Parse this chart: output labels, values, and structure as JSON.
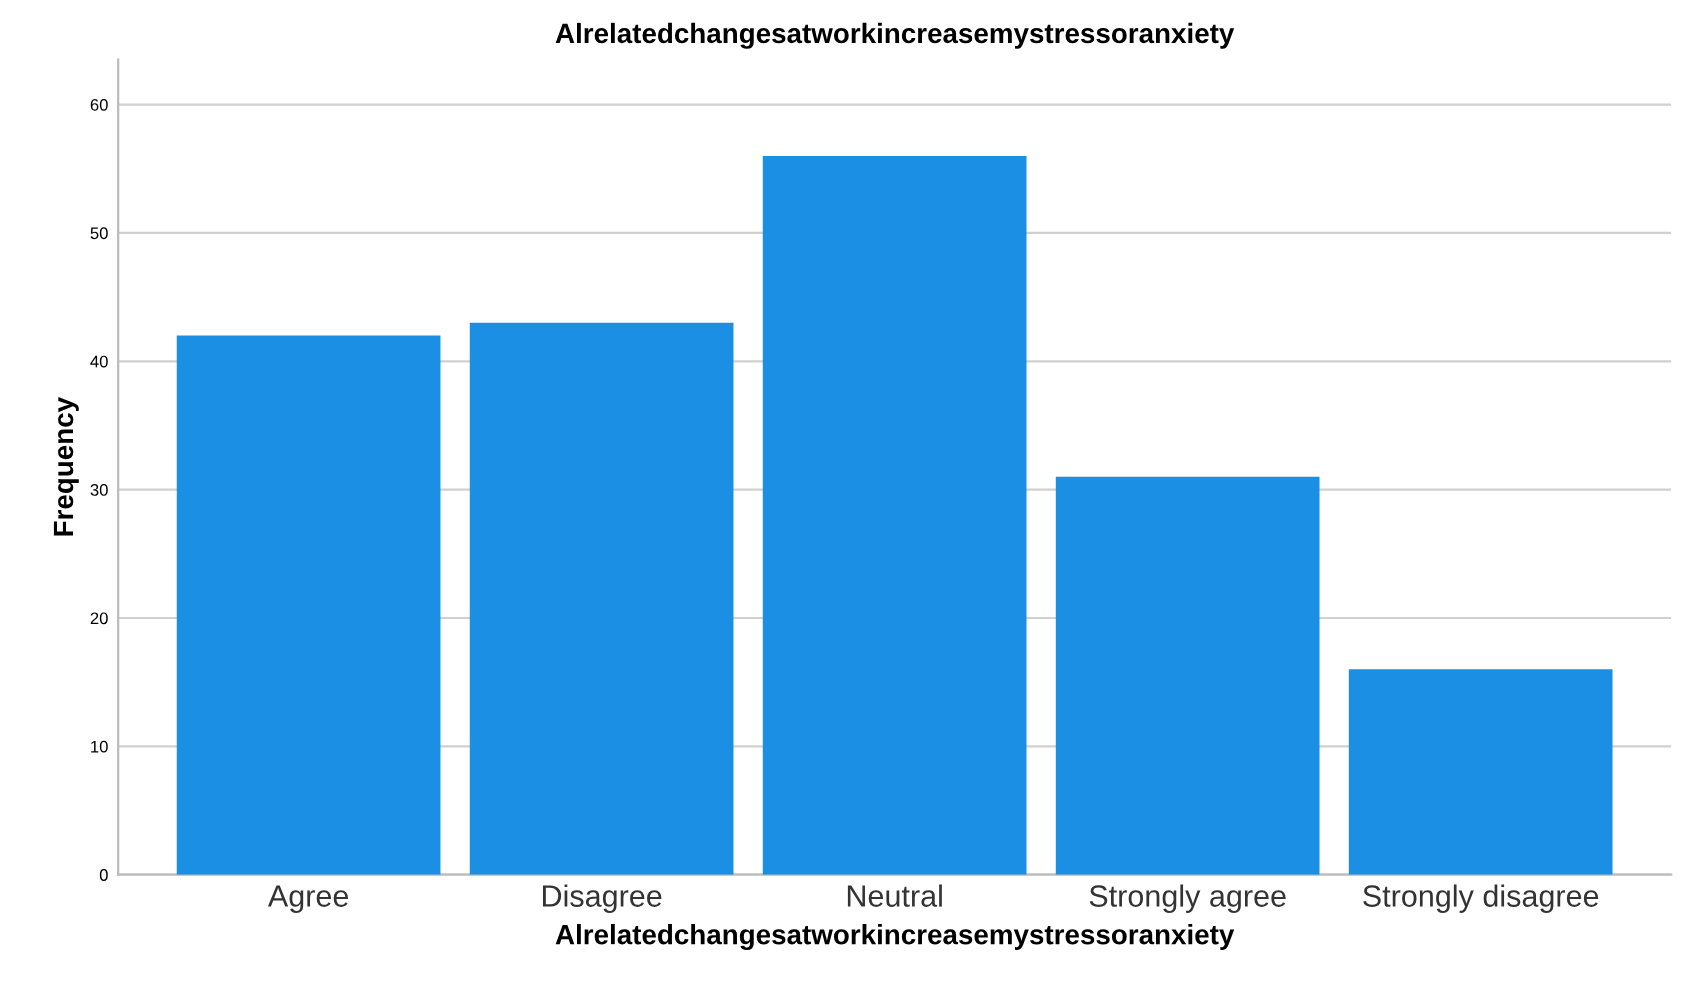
{
  "chart_data": {
    "type": "bar",
    "title": "Alrelatedchangesatworkincreasemystressoranxiety",
    "xlabel": "Alrelatedchangesatworkincreasemystressoranxiety",
    "ylabel": "Frequency",
    "categories": [
      "Agree",
      "Disagree",
      "Neutral",
      "Strongly agree",
      "Strongly disagree"
    ],
    "values": [
      42,
      43,
      56,
      31,
      16
    ],
    "color": "#1a8fe3",
    "ylim": [
      0,
      63.5
    ],
    "yticks": [
      0,
      10,
      20,
      30,
      40,
      50,
      60
    ],
    "grid": "y"
  }
}
